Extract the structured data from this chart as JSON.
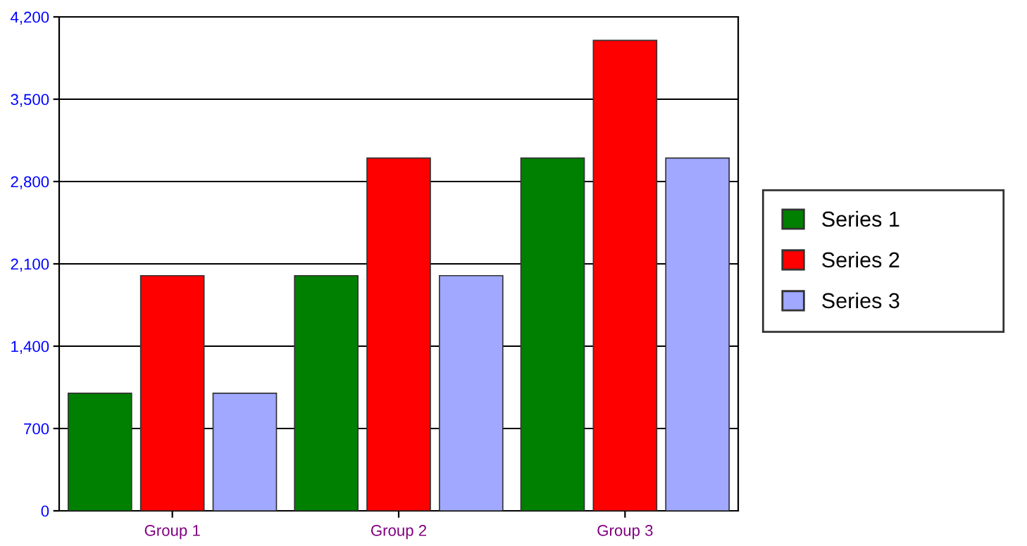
{
  "chart_data": {
    "type": "bar",
    "categories": [
      "Group 1",
      "Group 2",
      "Group 3"
    ],
    "series": [
      {
        "name": "Series 1",
        "color": "#008000",
        "values": [
          1000,
          2000,
          3000
        ]
      },
      {
        "name": "Series 2",
        "color": "#ff0000",
        "values": [
          2000,
          3000,
          4000
        ]
      },
      {
        "name": "Series 3",
        "color": "#a0a8ff",
        "values": [
          1000,
          2000,
          3000
        ]
      }
    ],
    "ylim": [
      0,
      4200
    ],
    "yticks": [
      0,
      {
        "value": 700,
        "label": "700"
      },
      {
        "value": 1400,
        "label": "1,400"
      },
      {
        "value": 2100,
        "label": "2,100"
      },
      {
        "value": 2800,
        "label": "2,800"
      },
      {
        "value": 3500,
        "label": "3,500"
      },
      {
        "value": 4200,
        "label": "4,200"
      }
    ],
    "grid": "y",
    "legend": "right"
  }
}
